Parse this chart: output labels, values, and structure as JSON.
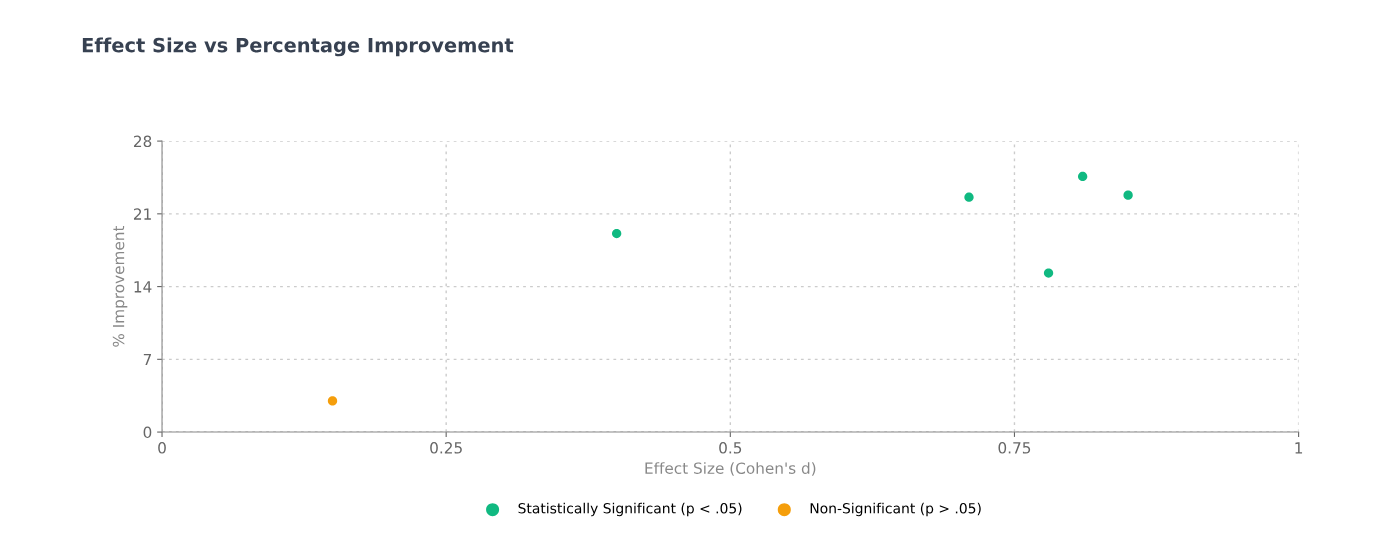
{
  "chart_data": {
    "type": "scatter",
    "title": "Effect Size vs Percentage Improvement",
    "xlabel": "Effect Size (Cohen's d)",
    "ylabel": "% Improvement",
    "series": [
      {
        "name": "Statistically Significant (p < .05)",
        "color": "#10b981",
        "x": [
          0.4,
          0.71,
          0.78,
          0.81,
          0.85
        ],
        "values": [
          19.1,
          22.6,
          15.3,
          24.6,
          22.8
        ]
      },
      {
        "name": "Non-Significant (p > .05)",
        "color": "#f59e0b",
        "x": [
          0.15
        ],
        "values": [
          3.0
        ]
      }
    ],
    "xlim": [
      0,
      1
    ],
    "xticks": [
      0,
      0.25,
      0.5,
      0.75,
      1
    ],
    "ylim": [
      0,
      28
    ],
    "yticks": [
      0,
      7,
      14,
      21,
      28
    ],
    "grid": true,
    "legend": "bottom",
    "marker": "circle"
  }
}
